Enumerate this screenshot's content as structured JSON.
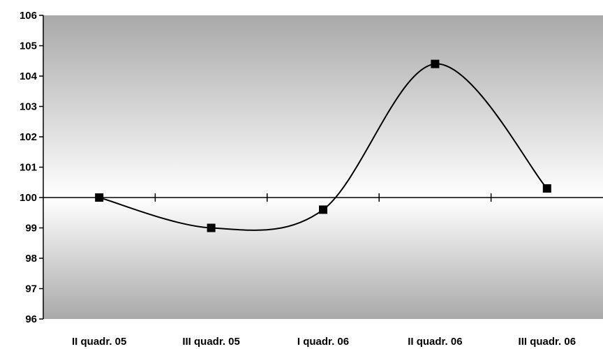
{
  "chart_data": {
    "type": "line",
    "categories": [
      "II quadr. 05",
      "III quadr. 05",
      "I quadr. 06",
      "II quadr. 06",
      "III quadr. 06"
    ],
    "series": [
      {
        "values": [
          100.0,
          99.0,
          99.6,
          104.4,
          100.3
        ]
      }
    ],
    "yticks": [
      "106",
      "105",
      "104",
      "103",
      "102",
      "101",
      "100",
      "99",
      "98",
      "97",
      "96"
    ],
    "ylim": [
      96,
      106
    ],
    "baseline": 100,
    "title": "",
    "xlabel": "",
    "ylabel": "",
    "smooth": true,
    "marker": "square",
    "grid": false,
    "legend": "none",
    "colors": {
      "line": "#000000",
      "marker": "#000000",
      "plot_gradient_dark": "#a9a9a9",
      "plot_gradient_light": "#ffffff"
    }
  }
}
